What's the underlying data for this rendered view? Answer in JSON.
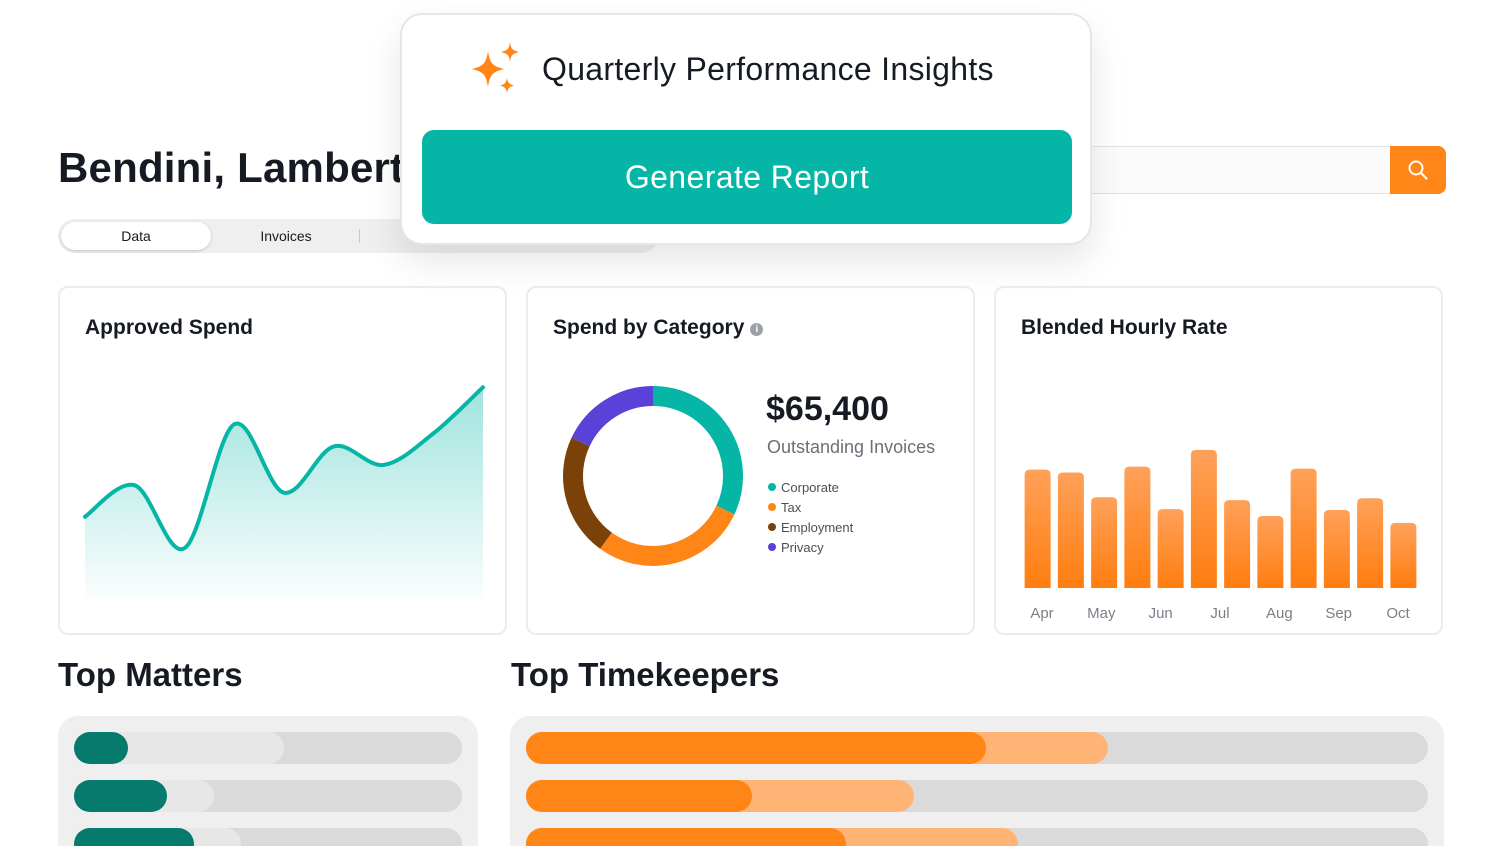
{
  "header": {
    "title": "Bendini, Lambert",
    "search_placeholder": ""
  },
  "tabs": [
    {
      "label": "Data",
      "active": true
    },
    {
      "label": "Invoices",
      "active": false
    }
  ],
  "popup": {
    "title": "Quarterly Performance Insights",
    "button_label": "Generate Report",
    "icon": "sparkles-icon"
  },
  "colors": {
    "teal": "#05b6a6",
    "dark_teal": "#067a6c",
    "orange": "#ff8616",
    "light_orange": "#ffb476",
    "brown": "#7a4108",
    "purple": "#5a41d8"
  },
  "cards": {
    "approved_spend": {
      "title": "Approved Spend"
    },
    "spend_by_category": {
      "title": "Spend by Category",
      "amount": "$65,400",
      "caption": "Outstanding Invoices",
      "legend": [
        "Corporate",
        "Tax",
        "Employment",
        "Privacy"
      ]
    },
    "blended_rate": {
      "title": "Blended Hourly Rate"
    }
  },
  "sections": {
    "top_matters": "Top Matters",
    "top_timekeepers": "Top Timekeepers"
  },
  "chart_data": [
    {
      "type": "area",
      "title": "Approved Spend",
      "x": [
        0,
        1,
        2,
        3,
        4,
        5,
        6,
        7,
        8
      ],
      "values": [
        45,
        62,
        28,
        95,
        58,
        83,
        73,
        90,
        115
      ],
      "ylim": [
        0,
        120
      ],
      "grid": false
    },
    {
      "type": "pie",
      "title": "Spend by Category",
      "categories": [
        "Corporate",
        "Tax",
        "Employment",
        "Privacy"
      ],
      "values": [
        32,
        28,
        22,
        18
      ],
      "colors": [
        "#05b6a6",
        "#ff8616",
        "#7a4108",
        "#5a41d8"
      ],
      "donut": true
    },
    {
      "type": "bar",
      "title": "Blended Hourly Rate",
      "tick_labels": [
        "Apr",
        "May",
        "Jun",
        "Jul",
        "Aug",
        "Sep",
        "Oct"
      ],
      "values": [
        120,
        117,
        92,
        123,
        80,
        140,
        89,
        73,
        121,
        79,
        91,
        66
      ],
      "ylim": [
        0,
        150
      ],
      "grid": false
    }
  ],
  "top_matters": [
    {
      "value": 0.14,
      "secondary": 0.54
    },
    {
      "value": 0.24,
      "secondary": 0.36
    },
    {
      "value": 0.31,
      "secondary": 0.43
    }
  ],
  "top_timekeepers": [
    {
      "value": 0.51,
      "secondary": 0.645
    },
    {
      "value": 0.25,
      "secondary": 0.43
    },
    {
      "value": 0.355,
      "secondary": 0.545
    }
  ]
}
